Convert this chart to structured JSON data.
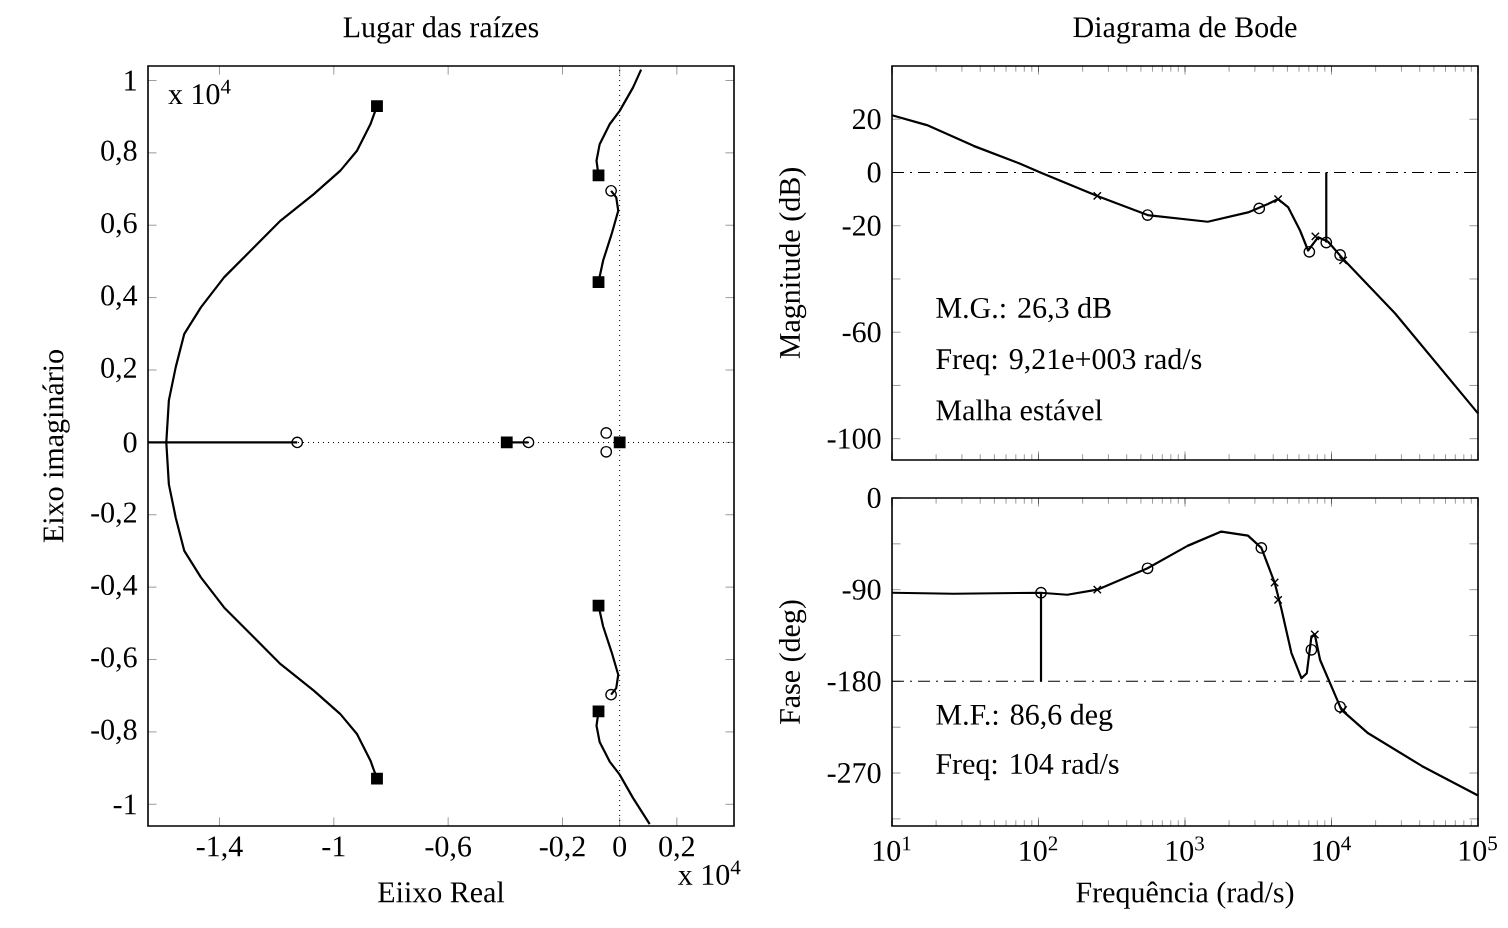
{
  "chart_data": [
    {
      "type": "line",
      "title": "Lugar das raízes",
      "xlabel": "Eiixo Real",
      "ylabel": "Eixo imaginário",
      "xlim": [
        -1.65,
        0.4
      ],
      "ylim": [
        -1.06,
        1.04
      ],
      "xticks": [
        {
          "value": -1.4,
          "label": "-1,4"
        },
        -1,
        {
          "value": -0.6,
          "label": "-0,6"
        },
        {
          "value": -0.2,
          "label": "-0,2"
        },
        0,
        {
          "value": 0.2,
          "label": "0,2"
        }
      ],
      "yticks": [
        -1,
        {
          "value": -0.8,
          "label": "-0,8"
        },
        {
          "value": -0.6,
          "label": "-0,6"
        },
        {
          "value": -0.4,
          "label": "-0,4"
        },
        {
          "value": -0.2,
          "label": "-0,2"
        },
        0,
        {
          "value": 0.2,
          "label": "0,2"
        },
        {
          "value": 0.4,
          "label": "0,4"
        },
        {
          "value": 0.6,
          "label": "0,6"
        },
        {
          "value": 0.8,
          "label": "0,8"
        },
        1
      ],
      "ref_lines": [
        {
          "axis": "x",
          "value": 0,
          "line_style": "dotted",
          "color": "#000000"
        },
        {
          "axis": "y",
          "value": 0,
          "line_style": "dotted",
          "color": "#000000"
        }
      ],
      "annotations": [
        "x 10$^{4}$",
        "x 10$^{4}$"
      ],
      "series": [
        {
          "color": "#000000",
          "x": [
            -0.849,
            -0.872,
            -0.919,
            -0.977,
            -1.07,
            -1.186,
            -1.279,
            -1.384,
            -1.465,
            -1.523,
            -1.553,
            -1.577,
            -1.586,
            -1.577,
            -1.553,
            -1.523,
            -1.465,
            -1.384,
            -1.279,
            -1.186,
            -1.07,
            -0.977,
            -0.919,
            -0.872,
            -0.849
          ],
          "values": [
            0.929,
            0.879,
            0.806,
            0.751,
            0.686,
            0.613,
            0.539,
            0.456,
            0.373,
            0.3,
            0.208,
            0.116,
            0,
            -0.116,
            -0.208,
            -0.3,
            -0.373,
            -0.456,
            -0.539,
            -0.613,
            -0.686,
            -0.751,
            -0.806,
            -0.879,
            -0.929
          ]
        },
        {
          "color": "#000000",
          "x": [
            -1.65,
            -1.128
          ],
          "values": [
            0,
            0
          ]
        },
        {
          "color": "#000000",
          "x": [
            -0.395,
            -0.319
          ],
          "values": [
            0,
            0
          ]
        },
        {
          "color": "#000000",
          "x": [
            -0.074,
            -0.081,
            -0.07,
            -0.035,
            0,
            0.047,
            0.075
          ],
          "values": [
            0.738,
            0.778,
            0.824,
            0.879,
            0.916,
            0.981,
            1.03
          ]
        },
        {
          "color": "#000000",
          "x": [
            -0.074,
            -0.058,
            -0.028,
            -0.005,
            -0.012,
            -0.03
          ],
          "values": [
            0.443,
            0.502,
            0.576,
            0.64,
            0.677,
            0.695
          ]
        },
        {
          "color": "#000000",
          "x": [
            -0.074,
            -0.058,
            -0.028,
            -0.005,
            -0.012,
            -0.03
          ],
          "values": [
            -0.451,
            -0.508,
            -0.58,
            -0.642,
            -0.679,
            -0.697
          ]
        },
        {
          "color": "#000000",
          "x": [
            -0.074,
            -0.081,
            -0.07,
            -0.035,
            0,
            0.047,
            0.105
          ],
          "values": [
            -0.743,
            -0.783,
            -0.828,
            -0.882,
            -0.918,
            -0.983,
            -1.055
          ]
        },
        {
          "type": "scatter",
          "marker": "square",
          "color": "#000000",
          "x": [
            -0.849,
            -0.849,
            -0.395,
            0,
            -0.074,
            -0.074,
            -0.074,
            -0.074
          ],
          "values": [
            0.929,
            -0.929,
            0,
            0,
            0.738,
            0.443,
            -0.451,
            -0.743
          ]
        },
        {
          "type": "scatter",
          "marker": "circle",
          "color": "#000000",
          "x": [
            -1.128,
            -0.319,
            -0.047,
            -0.047,
            -0.03,
            -0.03
          ],
          "values": [
            0,
            0,
            0.026,
            -0.026,
            0.695,
            -0.697
          ]
        }
      ]
    },
    {
      "type": "line",
      "title": "Diagrama de Bode",
      "ylabel": "Magnitude (dB)",
      "log": "x",
      "tick_labels": "y",
      "xlim": [
        10,
        100000
      ],
      "ylim": [
        -108,
        40
      ],
      "xticks": [
        {
          "value": 10,
          "label": null
        },
        {
          "value": 100,
          "label": null
        },
        {
          "value": 1000,
          "label": null
        },
        {
          "value": 10000,
          "label": null
        },
        {
          "value": 100000,
          "label": null
        }
      ],
      "yticks": [
        20,
        0,
        -20,
        {
          "value": -40,
          "label": null
        },
        -60,
        {
          "value": -80,
          "label": null
        },
        -100
      ],
      "ref_lines": [
        {
          "axis": "y",
          "value": 0,
          "line_style": "dashed",
          "color": "#000000"
        }
      ],
      "annotations": [
        "M.G.: 26,3 dB",
        "Freq: 9,21e+003 rad/s",
        "Malha estável"
      ],
      "series": [
        {
          "color": "#000000",
          "x": [
            10,
            17.3,
            36,
            75,
            103,
            252,
            555,
            1430,
            2690,
            3680,
            4320,
            5050,
            6100,
            6920,
            8110,
            9480,
            11700,
            27200,
            100000
          ],
          "values": [
            21.5,
            17.8,
            10,
            3.3,
            0,
            -8.8,
            -16,
            -18.5,
            -15,
            -11.8,
            -10,
            -13,
            -21.8,
            -29.3,
            -24.3,
            -26,
            -31.8,
            -53,
            -90.5
          ]
        },
        {
          "type": "scatter",
          "marker": "circle",
          "color": "#000000",
          "x": [
            555,
            3210,
            7060,
            11450
          ],
          "values": [
            -16,
            -13.5,
            -29.8,
            -31
          ]
        },
        {
          "type": "scatter",
          "marker": "cross",
          "color": "#000000",
          "x": [
            252,
            4320,
            7760,
            12000
          ],
          "values": [
            -8.8,
            -10,
            -24,
            -33
          ]
        },
        {
          "color": "#000000",
          "x": [
            9210,
            9210
          ],
          "values": [
            0,
            -26.3
          ]
        },
        {
          "type": "scatter",
          "marker": "circle",
          "color": "#000000",
          "x": [
            9210
          ],
          "values": [
            -26.3
          ]
        }
      ]
    },
    {
      "type": "line",
      "xlabel": "Frequência (rad/s)",
      "ylabel": "Fase (deg)",
      "log": "x",
      "xlim": [
        10,
        100000
      ],
      "ylim": [
        -322,
        0
      ],
      "xticks": [
        {
          "value": 10,
          "label": "10$^{1}$"
        },
        {
          "value": 100,
          "label": "10$^{2}$"
        },
        {
          "value": 1000,
          "label": "10$^{3}$"
        },
        {
          "value": 10000,
          "label": "10$^{4}$"
        },
        {
          "value": 100000,
          "label": "10$^{5}$"
        }
      ],
      "yticks": [
        0,
        {
          "value": -45,
          "label": null
        },
        -90,
        {
          "value": -135,
          "label": null
        },
        -180,
        {
          "value": -225,
          "label": null
        },
        -270,
        {
          "value": -315,
          "label": null
        }
      ],
      "ref_lines": [
        {
          "axis": "y",
          "value": -180,
          "line_style": "dashed",
          "color": "#000000"
        }
      ],
      "annotations": [
        "M.F.: 86,6 deg",
        "Freq: 104 rad/s"
      ],
      "series": [
        {
          "color": "#000000",
          "x": [
            10,
            26.3,
            103,
            157,
            252,
            555,
            1040,
            1770,
            2690,
            3320,
            4090,
            4550,
            5320,
            6240,
            6780,
            7290,
            7690,
            8360,
            11700,
            17800,
            41300,
            100000
          ],
          "values": [
            -93,
            -94,
            -93,
            -95,
            -90,
            -69,
            -47,
            -33,
            -37,
            -49,
            -83,
            -109,
            -152,
            -177,
            -172,
            -136,
            -134,
            -159,
            -208,
            -231,
            -263,
            -292
          ]
        },
        {
          "type": "scatter",
          "marker": "circle",
          "color": "#000000",
          "x": [
            555,
            3320,
            7290,
            11450
          ],
          "values": [
            -69,
            -49,
            -149,
            -205
          ]
        },
        {
          "type": "scatter",
          "marker": "cross",
          "color": "#000000",
          "x": [
            252,
            4090,
            4320,
            7690,
            12000
          ],
          "values": [
            -90,
            -83,
            -100,
            -134,
            -208
          ]
        },
        {
          "color": "#000000",
          "x": [
            104,
            104
          ],
          "values": [
            -180,
            -93
          ]
        },
        {
          "type": "scatter",
          "marker": "circle",
          "color": "#000000",
          "x": [
            104
          ],
          "values": [
            -93
          ]
        }
      ]
    }
  ]
}
